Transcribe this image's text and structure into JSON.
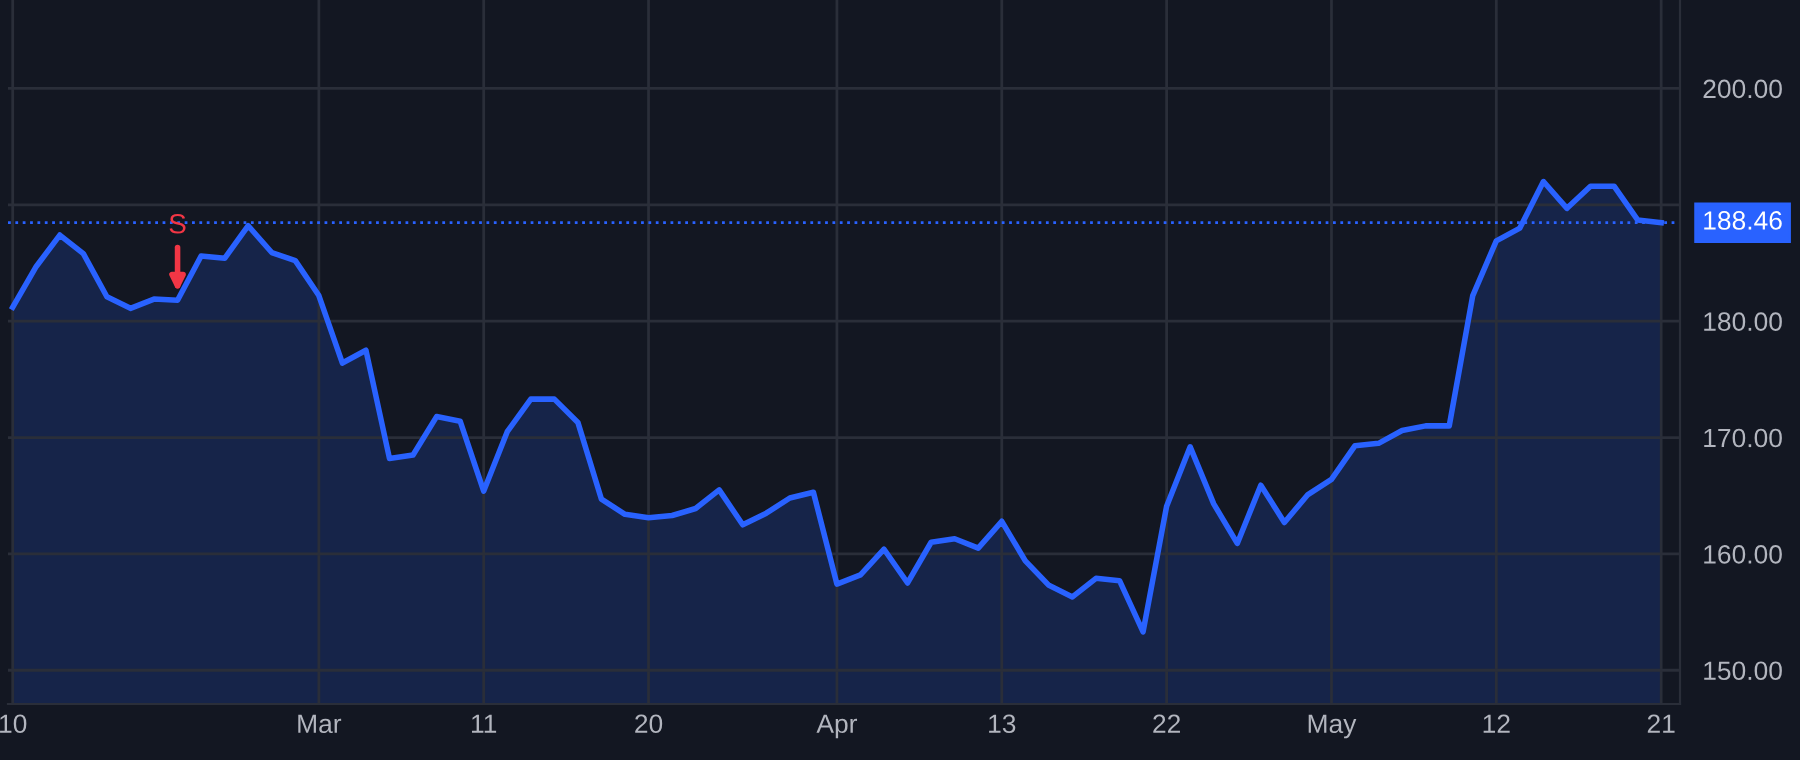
{
  "chart_data": {
    "type": "area",
    "categories": [
      "10",
      null,
      null,
      null,
      null,
      null,
      null,
      null,
      null,
      null,
      null,
      null,
      null,
      "Mar",
      null,
      null,
      null,
      null,
      null,
      null,
      "11",
      null,
      null,
      null,
      null,
      null,
      null,
      "20",
      null,
      null,
      null,
      null,
      null,
      null,
      null,
      "Apr",
      null,
      null,
      null,
      null,
      null,
      null,
      "13",
      null,
      null,
      null,
      null,
      null,
      null,
      "22",
      null,
      null,
      null,
      null,
      null,
      null,
      "May",
      null,
      null,
      null,
      null,
      null,
      null,
      "12",
      null,
      null,
      null,
      null,
      null,
      null,
      "21"
    ],
    "series": [
      {
        "color": "#2962ff",
        "values": [
          181.2,
          184.7,
          187.4,
          185.8,
          182.1,
          181.1,
          181.9,
          181.8,
          185.6,
          185.4,
          188.2,
          185.9,
          185.2,
          182.2,
          176.4,
          177.5,
          168.2,
          168.5,
          171.8,
          171.4,
          165.4,
          170.5,
          173.3,
          173.3,
          171.3,
          164.7,
          163.4,
          163.1,
          163.3,
          163.9,
          165.5,
          162.5,
          163.5,
          164.8,
          165.3,
          157.4,
          158.2,
          160.4,
          157.5,
          161.0,
          161.3,
          160.5,
          162.8,
          159.4,
          157.3,
          156.3,
          157.9,
          157.7,
          153.3,
          164.1,
          169.2,
          164.3,
          160.9,
          165.9,
          162.7,
          165.1,
          166.4,
          169.3,
          169.5,
          170.6,
          171.0,
          171.0,
          182.2,
          186.9,
          188.0,
          192.0,
          189.7,
          191.6,
          191.6,
          188.7,
          188.46
        ]
      }
    ],
    "ylim": [
      147.1,
      207.6
    ],
    "yticks": [
      {
        "value": 150,
        "label": "150.00"
      },
      {
        "value": 160,
        "label": "160.00"
      },
      {
        "value": 170,
        "label": "170.00"
      },
      {
        "value": 180,
        "label": "180.00"
      },
      {
        "value": 190,
        "label": null
      },
      {
        "value": 200,
        "label": "200.00"
      }
    ],
    "ref_lines": [
      {
        "axis": "y",
        "value": 188.46,
        "label": "188.46",
        "color": "#2962ff",
        "line_style": "dotted"
      }
    ],
    "annotations": [
      {
        "text": "S",
        "y": 181.8
      }
    ],
    "grid": true
  }
}
